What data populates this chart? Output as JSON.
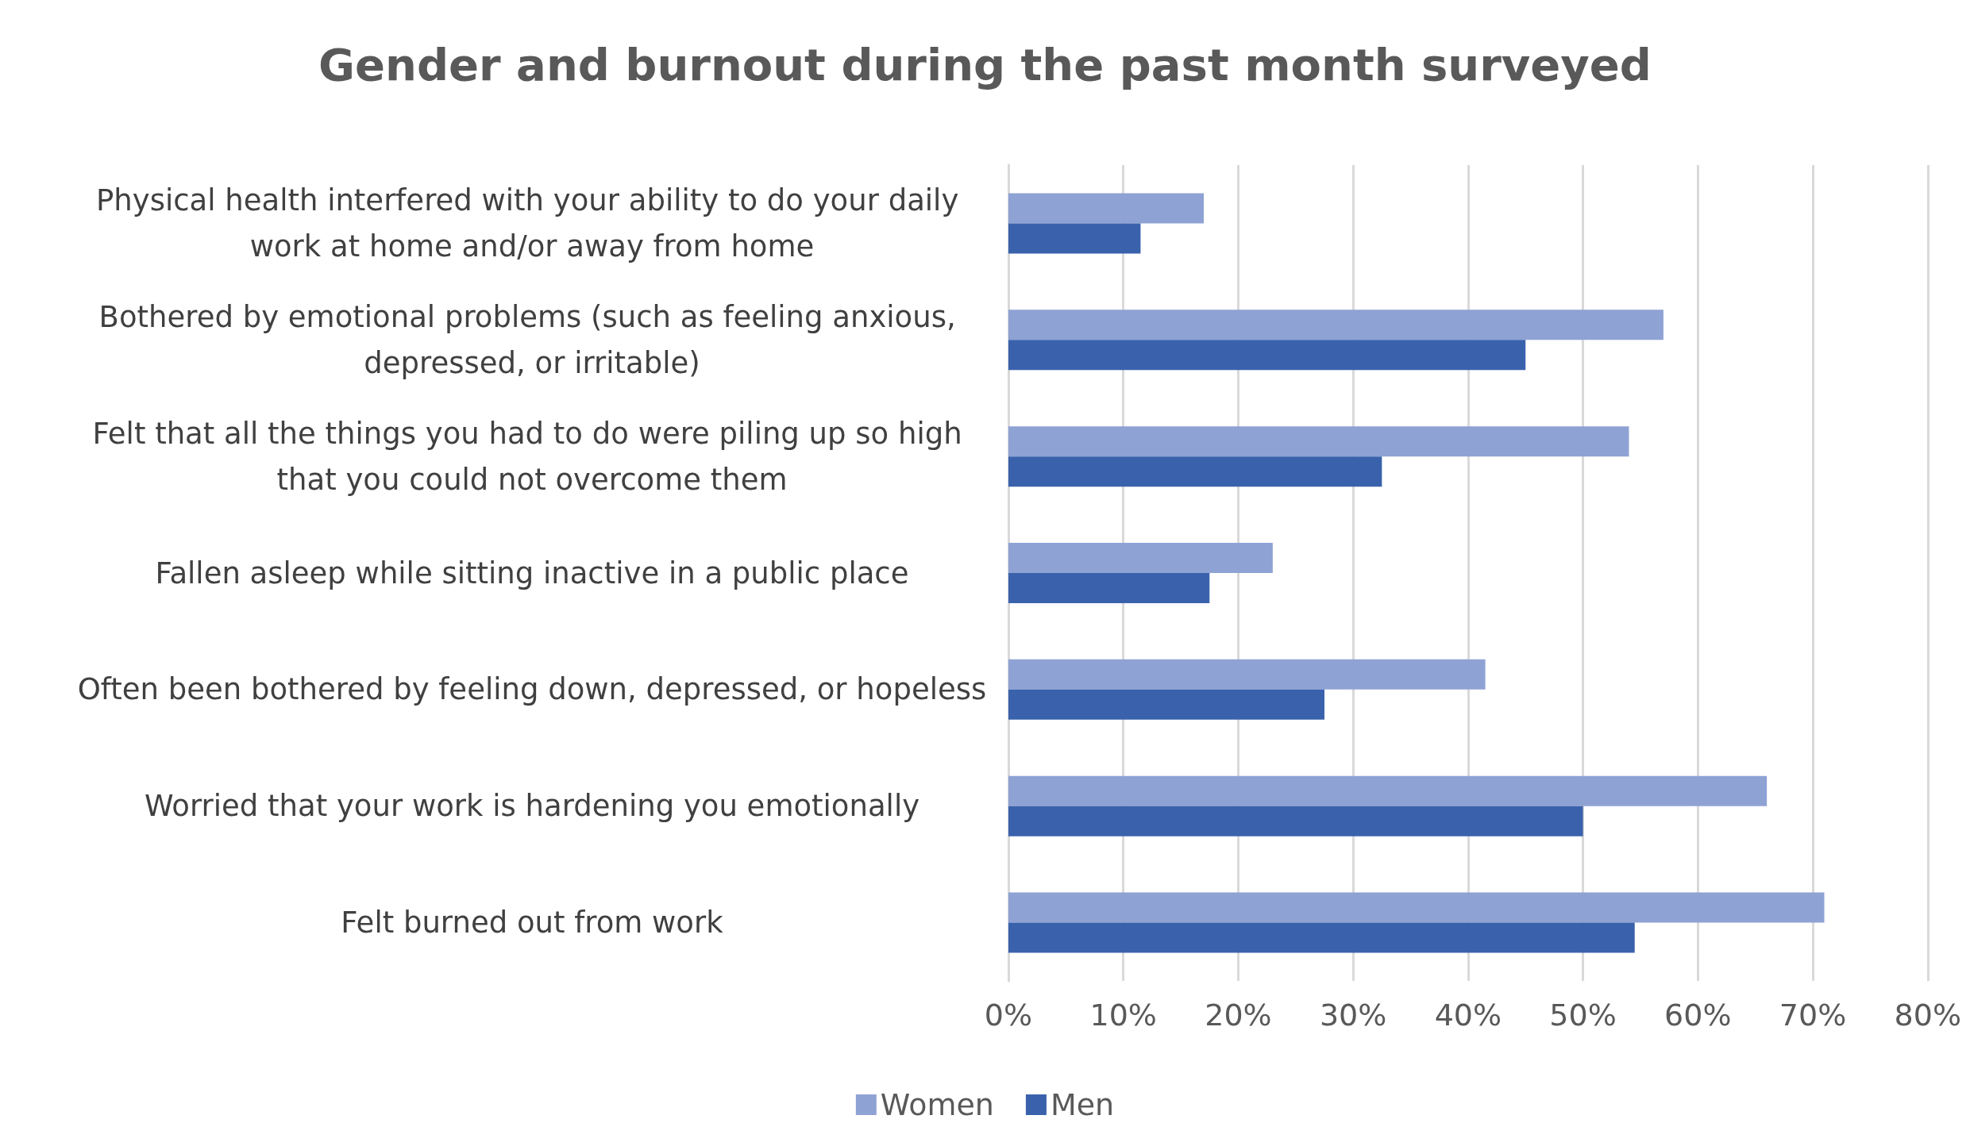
{
  "chart_data": {
    "type": "bar",
    "orientation": "horizontal",
    "title": "Gender and burnout during the past month surveyed",
    "categories": [
      "Physical health interfered with your ability to do your daily work at home and/or away from home",
      "Bothered by emotional problems (such as feeling anxious, depressed, or irritable)",
      "Felt that all the things you had to do were piling up so high that you could not overcome them",
      "Fallen asleep while sitting inactive in a public place",
      "Often been bothered by feeling down, depressed, or hopeless",
      "Worried that your work is hardening you emotionally",
      "Felt burned out from work"
    ],
    "series": [
      {
        "name": "Women",
        "color": "#8fa2d4",
        "values": [
          17,
          57,
          54,
          23,
          41.5,
          66,
          71
        ]
      },
      {
        "name": "Men",
        "color": "#3a62ac",
        "values": [
          11.5,
          45,
          32.5,
          17.5,
          27.5,
          50,
          54.5
        ]
      }
    ],
    "xlim": [
      0,
      80
    ],
    "xticks": [
      {
        "value": 0,
        "label": "0%"
      },
      {
        "value": 10,
        "label": "10%"
      },
      {
        "value": 20,
        "label": "20%"
      },
      {
        "value": 30,
        "label": "30%"
      },
      {
        "value": 40,
        "label": "40%"
      },
      {
        "value": 50,
        "label": "50%"
      },
      {
        "value": 60,
        "label": "60%"
      },
      {
        "value": 70,
        "label": "70%"
      },
      {
        "value": 80,
        "label": "80%"
      }
    ],
    "grid": "x",
    "legend": "bottom"
  }
}
